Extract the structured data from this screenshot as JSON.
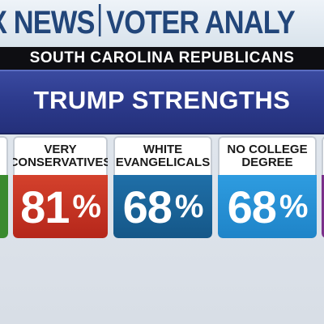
{
  "banner": {
    "brand": "X NEWS",
    "title_fragment": "VOTER ANALY"
  },
  "subtitle": "SOUTH CAROLINA REPUBLICANS",
  "heading": "TRUMP STRENGTHS",
  "cards": [
    {
      "label_line1": "VERY",
      "label_line2": "CONSERVATIVES",
      "value": "81",
      "unit": "%",
      "color": "#c2331f"
    },
    {
      "label_line1": "WHITE",
      "label_line2": "EVANGELICALS",
      "value": "68",
      "unit": "%",
      "color": "#1a6399"
    },
    {
      "label_line1": "NO COLLEGE",
      "label_line2": "DEGREE",
      "value": "68",
      "unit": "%",
      "color": "#2590d6"
    }
  ],
  "edge_colors": {
    "left": "#3a8a2e",
    "right": "#7a2f8a"
  }
}
